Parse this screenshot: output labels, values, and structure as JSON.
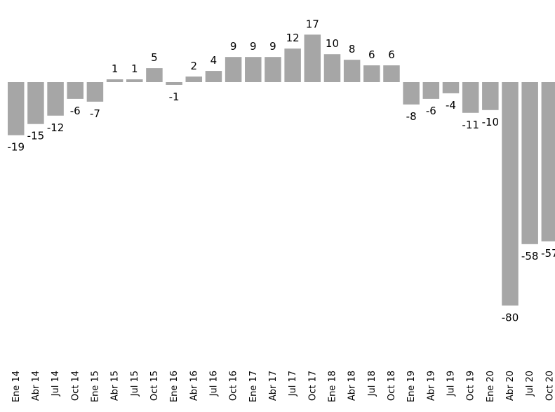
{
  "chart_data": {
    "type": "bar",
    "categories": [
      "Ene 14",
      "Abr 14",
      "Jul 14",
      "Oct 14",
      "Ene 15",
      "Abr 15",
      "Jul 15",
      "Oct 15",
      "Ene 16",
      "Abr 16",
      "Jul 16",
      "Oct 16",
      "Ene 17",
      "Abr 17",
      "Jul 17",
      "Oct 17",
      "Ene 18",
      "Abr 18",
      "Jul 18",
      "Oct 18",
      "Ene 19",
      "Abr 19",
      "Jul 19",
      "Oct 19",
      "Ene 20",
      "Abr 20",
      "Jul 20",
      "Oct 20"
    ],
    "values": [
      -19,
      -15,
      -12,
      -6,
      -7,
      1,
      1,
      5,
      -1,
      2,
      4,
      9,
      9,
      9,
      12,
      17,
      10,
      8,
      6,
      6,
      -8,
      -6,
      -4,
      -11,
      -10,
      -80,
      -58,
      -57
    ],
    "title": "",
    "xlabel": "",
    "ylabel": "",
    "ylim": [
      -80,
      17
    ],
    "grid": false,
    "legend": "none",
    "bar_color": "#a6a6a6"
  }
}
